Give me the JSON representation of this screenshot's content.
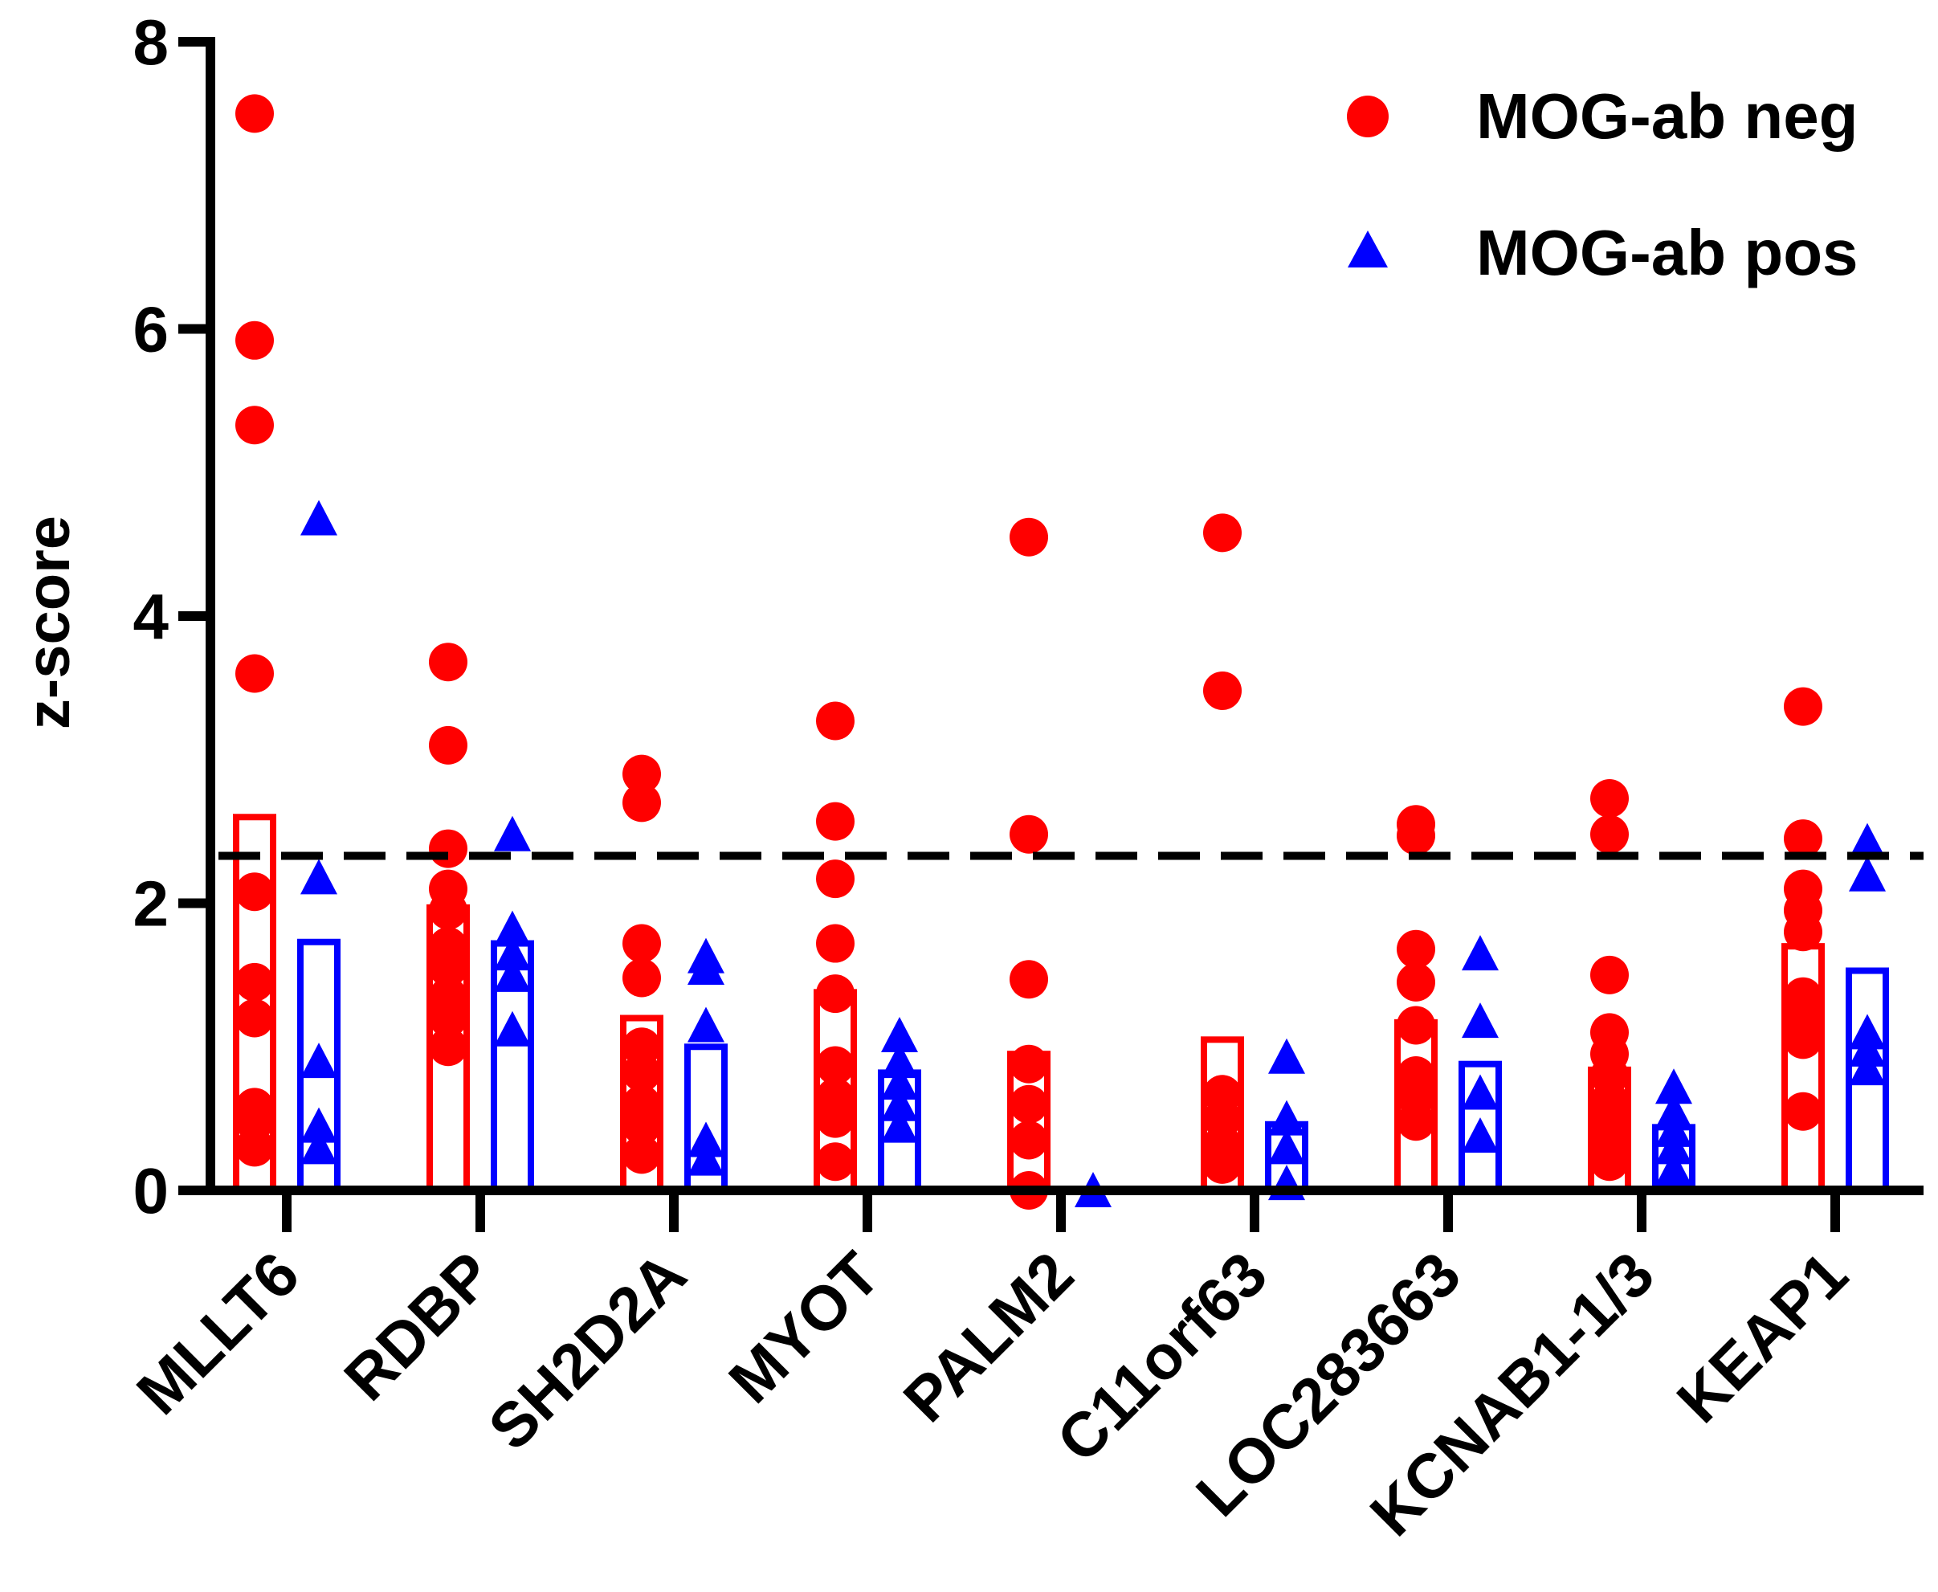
{
  "chart_data": {
    "type": "scatter",
    "title": "",
    "xlabel": "",
    "ylabel": "z-score",
    "ylim": [
      0,
      8
    ],
    "yticks": [
      0,
      2,
      4,
      6,
      8
    ],
    "threshold": 2.33,
    "grid": false,
    "legend_position": "top-right",
    "categories": [
      "MLLT6",
      "RDBP",
      "SH2D2A",
      "MYOT",
      "PALM2",
      "C11orf63",
      "LOC283663",
      "KCNAB1-1/3",
      "KEAP1"
    ],
    "series": [
      {
        "name": "MOG-ab neg",
        "marker": "circle",
        "color": "#ff0000",
        "means": [
          2.6,
          1.97,
          1.2,
          1.38,
          0.95,
          1.05,
          1.17,
          0.84,
          1.7
        ],
        "points": [
          [
            7.5,
            5.92,
            5.33,
            3.6,
            2.08,
            1.45,
            1.2,
            0.58,
            0.48,
            0.3
          ],
          [
            3.68,
            3.1,
            2.38,
            2.1,
            1.95,
            1.7,
            1.55,
            1.35,
            1.2,
            1.0
          ],
          [
            2.9,
            2.7,
            1.72,
            1.48,
            1.0,
            0.82,
            0.6,
            0.45,
            0.25
          ],
          [
            3.27,
            2.57,
            2.17,
            1.72,
            1.37,
            0.87,
            0.65,
            0.5,
            0.2
          ],
          [
            4.55,
            2.48,
            1.47,
            0.88,
            0.6,
            0.35,
            0.0
          ],
          [
            4.58,
            3.48,
            0.67,
            0.5,
            0.32,
            0.18
          ],
          [
            2.55,
            2.47,
            1.68,
            1.45,
            1.15,
            0.8,
            0.65,
            0.48
          ],
          [
            2.73,
            2.48,
            1.5,
            1.1,
            0.95,
            0.8,
            0.62,
            0.5,
            0.35,
            0.2
          ],
          [
            3.37,
            2.45,
            2.1,
            1.95,
            1.8,
            1.35,
            1.2,
            1.05,
            0.55
          ]
        ]
      },
      {
        "name": "MOG-ab pos",
        "marker": "triangle",
        "color": "#0000ff",
        "means": [
          1.73,
          1.72,
          1.0,
          0.82,
          0.0,
          0.46,
          0.88,
          0.44,
          1.53
        ],
        "points": [
          [
            4.68,
            2.18,
            0.9,
            0.45,
            0.3
          ],
          [
            2.48,
            1.82,
            1.65,
            1.5,
            1.12
          ],
          [
            1.63,
            1.55,
            1.15,
            0.35,
            0.22
          ],
          [
            1.08,
            0.9,
            0.75,
            0.6,
            0.45
          ],
          [
            0.0
          ],
          [
            0.93,
            0.5,
            0.3,
            0.05
          ],
          [
            1.65,
            1.18,
            0.68,
            0.38
          ],
          [
            0.72,
            0.55,
            0.42,
            0.3,
            0.15
          ],
          [
            2.43,
            2.2,
            1.1,
            0.98,
            0.85
          ]
        ]
      }
    ]
  }
}
